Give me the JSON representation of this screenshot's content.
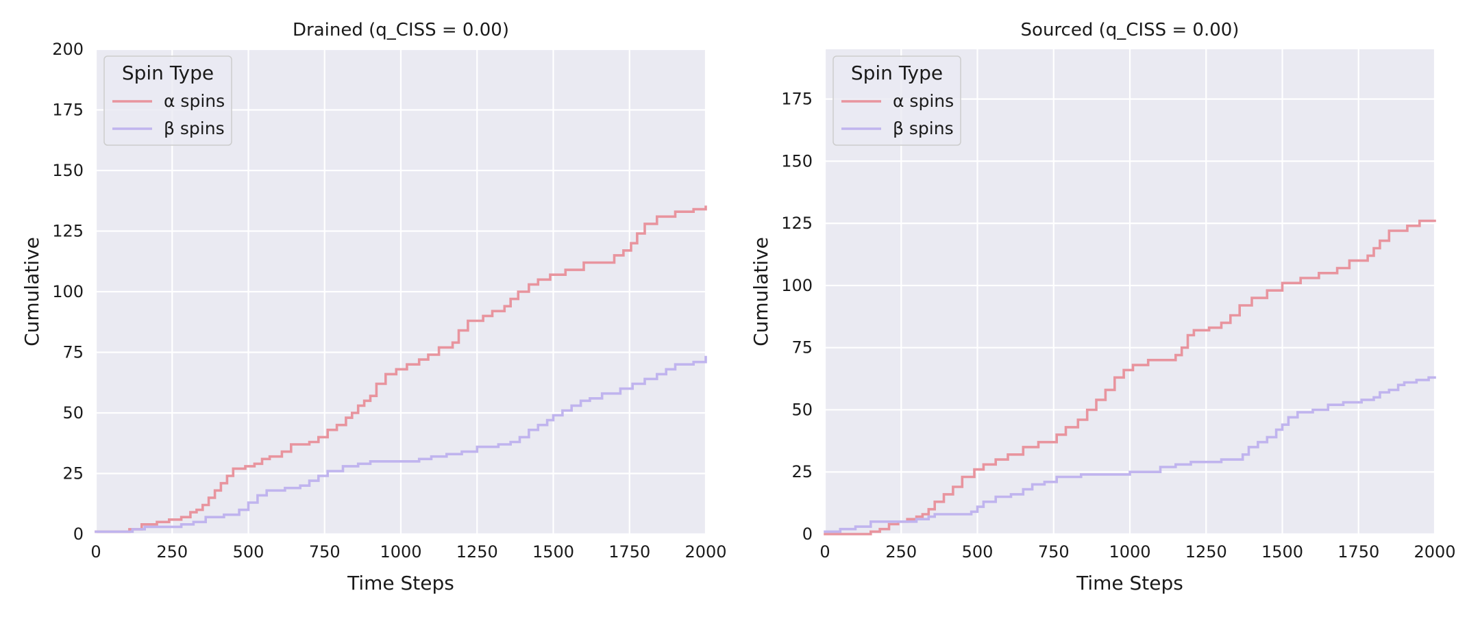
{
  "colors": {
    "panel_bg": "#EAEAF2",
    "grid": "#FFFFFF",
    "alpha": "#E8949E",
    "beta": "#C0B4EE"
  },
  "chart_data": [
    {
      "type": "line",
      "title": "Drained (q_CISS = 0.00)",
      "xlabel": "Time Steps",
      "ylabel": "Cumulative",
      "xlim": [
        0,
        2000
      ],
      "ylim": [
        0,
        200
      ],
      "xticks": [
        0,
        250,
        500,
        750,
        1000,
        1250,
        1500,
        1750,
        2000
      ],
      "yticks": [
        0,
        25,
        50,
        75,
        100,
        125,
        150,
        175,
        200
      ],
      "grid": true,
      "step": true,
      "legend": {
        "title": "Spin Type",
        "placement": "top-left",
        "entries": [
          "α spins",
          "β spins"
        ]
      },
      "series": [
        {
          "name": "α spins",
          "color_key": "alpha",
          "x": [
            0,
            60,
            110,
            150,
            200,
            240,
            280,
            310,
            330,
            350,
            370,
            390,
            410,
            430,
            450,
            490,
            520,
            545,
            570,
            610,
            640,
            700,
            730,
            760,
            790,
            820,
            840,
            860,
            880,
            900,
            920,
            950,
            985,
            1020,
            1060,
            1090,
            1125,
            1150,
            1170,
            1190,
            1220,
            1270,
            1300,
            1320,
            1340,
            1360,
            1385,
            1420,
            1450,
            1490,
            1540,
            1600,
            1650,
            1700,
            1730,
            1755,
            1775,
            1800,
            1840,
            1900,
            1960,
            2000
          ],
          "y": [
            1,
            1,
            2,
            4,
            5,
            6,
            7,
            9,
            10,
            12,
            15,
            18,
            21,
            24,
            27,
            28,
            29,
            31,
            32,
            34,
            37,
            38,
            40,
            43,
            45,
            48,
            50,
            53,
            55,
            57,
            62,
            66,
            68,
            70,
            72,
            74,
            77,
            77,
            79,
            84,
            88,
            90,
            92,
            92,
            94,
            97,
            100,
            103,
            105,
            107,
            109,
            112,
            112,
            115,
            117,
            120,
            124,
            128,
            131,
            133,
            134,
            135
          ]
        },
        {
          "name": "β spins",
          "color_key": "beta",
          "x": [
            0,
            80,
            120,
            160,
            200,
            280,
            320,
            360,
            420,
            470,
            500,
            530,
            560,
            620,
            670,
            700,
            730,
            760,
            810,
            860,
            900,
            950,
            1000,
            1060,
            1100,
            1150,
            1200,
            1250,
            1320,
            1360,
            1390,
            1420,
            1450,
            1480,
            1500,
            1530,
            1560,
            1590,
            1620,
            1660,
            1720,
            1760,
            1800,
            1840,
            1870,
            1900,
            1960,
            2000
          ],
          "y": [
            1,
            1,
            2,
            3,
            3,
            4,
            5,
            7,
            8,
            10,
            13,
            16,
            18,
            19,
            20,
            22,
            24,
            26,
            28,
            29,
            30,
            30,
            30,
            31,
            32,
            33,
            34,
            36,
            37,
            38,
            40,
            43,
            45,
            47,
            49,
            51,
            53,
            55,
            56,
            58,
            60,
            62,
            64,
            66,
            68,
            70,
            71,
            73
          ]
        }
      ]
    },
    {
      "type": "line",
      "title": "Sourced (q_CISS = 0.00)",
      "xlabel": "Time Steps",
      "ylabel": "Cumulative",
      "xlim": [
        0,
        2000
      ],
      "ylim": [
        0,
        195
      ],
      "xticks": [
        0,
        250,
        500,
        750,
        1000,
        1250,
        1500,
        1750,
        2000
      ],
      "yticks": [
        0,
        25,
        50,
        75,
        100,
        125,
        150,
        175
      ],
      "grid": true,
      "step": true,
      "legend": {
        "title": "Spin Type",
        "placement": "top-left",
        "entries": [
          "α spins",
          "β spins"
        ]
      },
      "series": [
        {
          "name": "α spins",
          "color_key": "alpha",
          "x": [
            0,
            100,
            150,
            180,
            210,
            240,
            270,
            300,
            320,
            340,
            360,
            390,
            420,
            450,
            490,
            520,
            560,
            600,
            650,
            700,
            760,
            790,
            830,
            860,
            890,
            920,
            950,
            980,
            1010,
            1060,
            1120,
            1150,
            1170,
            1190,
            1210,
            1260,
            1300,
            1330,
            1360,
            1400,
            1450,
            1500,
            1560,
            1620,
            1680,
            1720,
            1780,
            1800,
            1820,
            1850,
            1910,
            1950,
            2000
          ],
          "y": [
            0,
            0,
            1,
            2,
            4,
            5,
            6,
            7,
            8,
            10,
            13,
            16,
            19,
            23,
            26,
            28,
            30,
            32,
            35,
            37,
            40,
            43,
            46,
            50,
            54,
            58,
            63,
            66,
            68,
            70,
            70,
            72,
            75,
            80,
            82,
            83,
            85,
            88,
            92,
            95,
            98,
            101,
            103,
            105,
            107,
            110,
            112,
            115,
            118,
            122,
            124,
            126,
            126
          ]
        },
        {
          "name": "β spins",
          "color_key": "beta",
          "x": [
            0,
            50,
            100,
            150,
            300,
            340,
            360,
            480,
            500,
            520,
            560,
            610,
            650,
            680,
            720,
            760,
            840,
            1000,
            1100,
            1150,
            1200,
            1300,
            1370,
            1390,
            1420,
            1450,
            1480,
            1500,
            1520,
            1550,
            1600,
            1650,
            1700,
            1760,
            1800,
            1820,
            1850,
            1880,
            1900,
            1940,
            1980,
            2000
          ],
          "y": [
            1,
            2,
            3,
            5,
            6,
            7,
            8,
            9,
            11,
            13,
            15,
            16,
            18,
            20,
            21,
            23,
            24,
            25,
            27,
            28,
            29,
            30,
            32,
            35,
            37,
            39,
            42,
            44,
            47,
            49,
            50,
            52,
            53,
            54,
            55,
            57,
            58,
            60,
            61,
            62,
            63,
            63
          ]
        }
      ]
    }
  ]
}
